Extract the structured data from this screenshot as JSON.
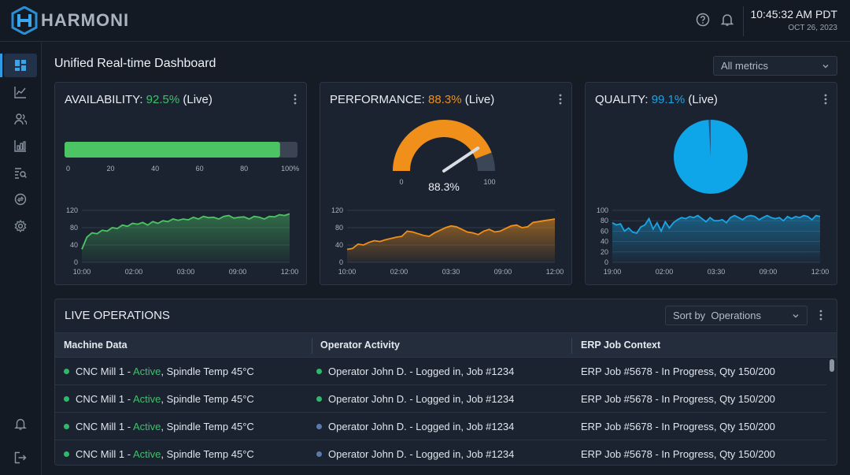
{
  "app": {
    "logo_text": "HARMONI"
  },
  "header": {
    "time": "10:45:32 AM PDT",
    "date": "OCT 26, 2023",
    "help_icon": "help-icon",
    "bell_icon": "bell-icon"
  },
  "sidebar": {
    "items": [
      "dashboard-icon",
      "line-chart-icon",
      "users-icon",
      "bar-chart-icon",
      "report-search-icon",
      "sync-icon",
      "settings-icon"
    ],
    "bottom": [
      "notification-icon",
      "logout-icon"
    ]
  },
  "page": {
    "title": "Unified Real-time Dashboard",
    "filter_value": "All metrics"
  },
  "availability": {
    "label": "AVAILABILITY:",
    "value": "92.5%",
    "suffix": "(Live)",
    "progress": 92.5,
    "scale_ticks": [
      "0",
      "20",
      "40",
      "60",
      "80",
      "100%"
    ],
    "chart_data": {
      "type": "area",
      "x_ticks": [
        "10:00",
        "02:00",
        "03:00",
        "09:00",
        "12:00"
      ],
      "y_ticks": [
        "0",
        "40",
        "80",
        "120"
      ],
      "ylim": [
        0,
        120
      ],
      "values": [
        30,
        58,
        68,
        66,
        74,
        72,
        80,
        78,
        86,
        83,
        90,
        88,
        92,
        86,
        94,
        90,
        96,
        94,
        100,
        97,
        100,
        98,
        104,
        100,
        106,
        103,
        104,
        100,
        106,
        108,
        102,
        104,
        105,
        100,
        106,
        104,
        100,
        106,
        105,
        110,
        108,
        112
      ]
    }
  },
  "performance": {
    "label": "PERFORMANCE:",
    "value": "88.3%",
    "suffix": "(Live)",
    "gauge_value": 88.3,
    "gauge_label": "88.3%",
    "gauge_min": "0",
    "gauge_max": "100",
    "chart_data": {
      "type": "area",
      "x_ticks": [
        "10:00",
        "02:00",
        "03:30",
        "09:00",
        "12:00"
      ],
      "y_ticks": [
        "0",
        "40",
        "80",
        "120"
      ],
      "ylim": [
        0,
        120
      ],
      "values": [
        30,
        32,
        42,
        40,
        46,
        50,
        48,
        52,
        55,
        58,
        60,
        72,
        70,
        66,
        62,
        60,
        68,
        74,
        80,
        84,
        82,
        76,
        70,
        68,
        64,
        72,
        76,
        70,
        72,
        78,
        84,
        86,
        80,
        82,
        92,
        94,
        96,
        98,
        100
      ]
    }
  },
  "quality": {
    "label": "QUALITY:",
    "value": "99.1%",
    "suffix": "(Live)",
    "pie_value": 99.1,
    "chart_data": {
      "type": "area",
      "x_ticks": [
        "19:00",
        "02:00",
        "03:30",
        "09:00",
        "12:00"
      ],
      "y_ticks": [
        "0",
        "20",
        "40",
        "60",
        "80",
        "100"
      ],
      "ylim": [
        0,
        100
      ],
      "values": [
        76,
        72,
        74,
        60,
        66,
        58,
        56,
        68,
        72,
        84,
        64,
        76,
        60,
        78,
        66,
        76,
        82,
        86,
        84,
        88,
        86,
        90,
        84,
        78,
        86,
        80,
        80,
        82,
        76,
        86,
        90,
        86,
        82,
        88,
        90,
        88,
        82,
        86,
        90,
        86,
        84,
        86,
        80,
        88,
        84,
        88,
        86,
        90,
        88,
        82,
        90,
        88
      ]
    }
  },
  "operations": {
    "title": "LIVE OPERATIONS",
    "sort_value": "Sort by  Operations",
    "columns": [
      "Machine Data",
      "Operator Activity",
      "ERP Job Context"
    ],
    "rows": [
      {
        "machine_prefix": "CNC Mill 1 - ",
        "machine_status": "Active",
        "machine_suffix": ", Spindle Temp 45°C",
        "operator": "Operator John D. - Logged in, Job #1234",
        "erp": "ERP Job #5678 - In Progress, Qty 150/200",
        "op_dot": "#2fb76a"
      },
      {
        "machine_prefix": "CNC Mill 1 - ",
        "machine_status": "Active",
        "machine_suffix": ", Spindle Temp 45°C",
        "operator": "Operator John D. - Logged in, Job #1234",
        "erp": "ERP Job #5678 - In Progress, Qty 150/200",
        "op_dot": "#2fb76a"
      },
      {
        "machine_prefix": "CNC Mill 1 - ",
        "machine_status": "Active",
        "machine_suffix": ", Spindle Temp 45°C",
        "operator": "Operator John D. - Logged in, Job #1234",
        "erp": "ERP Job #5678 - In Progress, Qty 150/200",
        "op_dot": "#5a7aa8"
      },
      {
        "machine_prefix": "CNC Mill 1 - ",
        "machine_status": "Active",
        "machine_suffix": ", Spindle Temp 45°C",
        "operator": "Operator John D. - Logged in, Job #1234",
        "erp": "ERP Job #5678 - In Progress, Qty 150/200",
        "op_dot": "#5a7aa8"
      }
    ]
  },
  "colors": {
    "green": "#3fc06b",
    "orange": "#f0901a",
    "blue": "#1aa5e6",
    "accent": "#2f9be6"
  }
}
